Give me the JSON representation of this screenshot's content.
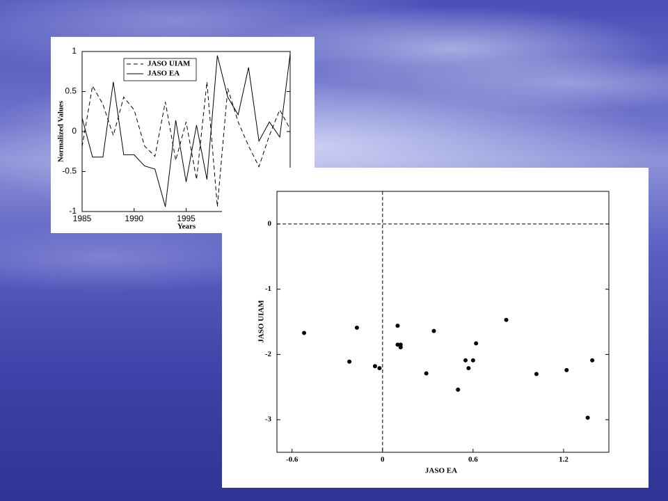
{
  "chart_data": [
    {
      "type": "line",
      "x": [
        1985,
        1986,
        1987,
        1988,
        1989,
        1990,
        1991,
        1992,
        1993,
        1994,
        1995,
        1996,
        1997,
        1998,
        1999,
        2000,
        2001,
        2002,
        2003,
        2004,
        2005
      ],
      "series": [
        {
          "name": "JASO UIAM",
          "color": "#000000",
          "linestyle": "dashed",
          "values": [
            -0.19,
            0.57,
            0.34,
            -0.05,
            0.43,
            0.27,
            -0.18,
            -0.31,
            0.37,
            -0.36,
            0.12,
            -0.6,
            0.62,
            -0.94,
            0.54,
            0.12,
            -0.18,
            -0.44,
            -0.05,
            0.27,
            0.03
          ]
        },
        {
          "name": "JASO EA",
          "color": "#000000",
          "linestyle": "solid",
          "values": [
            0.17,
            -0.32,
            -0.32,
            0.62,
            -0.29,
            -0.29,
            -0.43,
            -0.47,
            -0.94,
            0.14,
            -0.63,
            0.08,
            -0.6,
            0.95,
            0.43,
            0.21,
            0.8,
            -0.12,
            0.12,
            -0.07,
            0.97
          ]
        }
      ],
      "xlabel": "Years",
      "ylabel": "Normalized Values",
      "xlim": [
        1985,
        2005
      ],
      "xticks": [
        1985,
        1990,
        1995
      ],
      "ylim": [
        -1,
        1
      ],
      "yticks": [
        -1,
        -0.5,
        0,
        0.5,
        1
      ],
      "legend": "upper-left"
    },
    {
      "type": "scatter",
      "x": [
        -0.52,
        -0.22,
        -0.17,
        -0.05,
        -0.02,
        0.1,
        0.1,
        0.12,
        0.12,
        0.29,
        0.34,
        0.5,
        0.55,
        0.57,
        0.6,
        0.62,
        0.82,
        1.02,
        1.22,
        1.36,
        1.39
      ],
      "values": [
        -1.67,
        -2.11,
        -1.59,
        -2.18,
        -2.21,
        -1.56,
        -1.85,
        -1.85,
        -1.89,
        -2.29,
        -1.64,
        -2.54,
        -2.09,
        -2.21,
        -2.09,
        -1.83,
        -1.47,
        -2.3,
        -2.24,
        -2.97,
        -2.09
      ],
      "color": "#000000",
      "xlabel": "JASO EA",
      "ylabel": "JASO UIAM",
      "xlim": [
        -0.7,
        1.5
      ],
      "xticks": [
        -0.6,
        0,
        0.6,
        1.2
      ],
      "ylim": [
        -3.5,
        0.5
      ],
      "yticks": [
        0,
        -1,
        -2,
        -3
      ],
      "zero_lines": true
    }
  ]
}
